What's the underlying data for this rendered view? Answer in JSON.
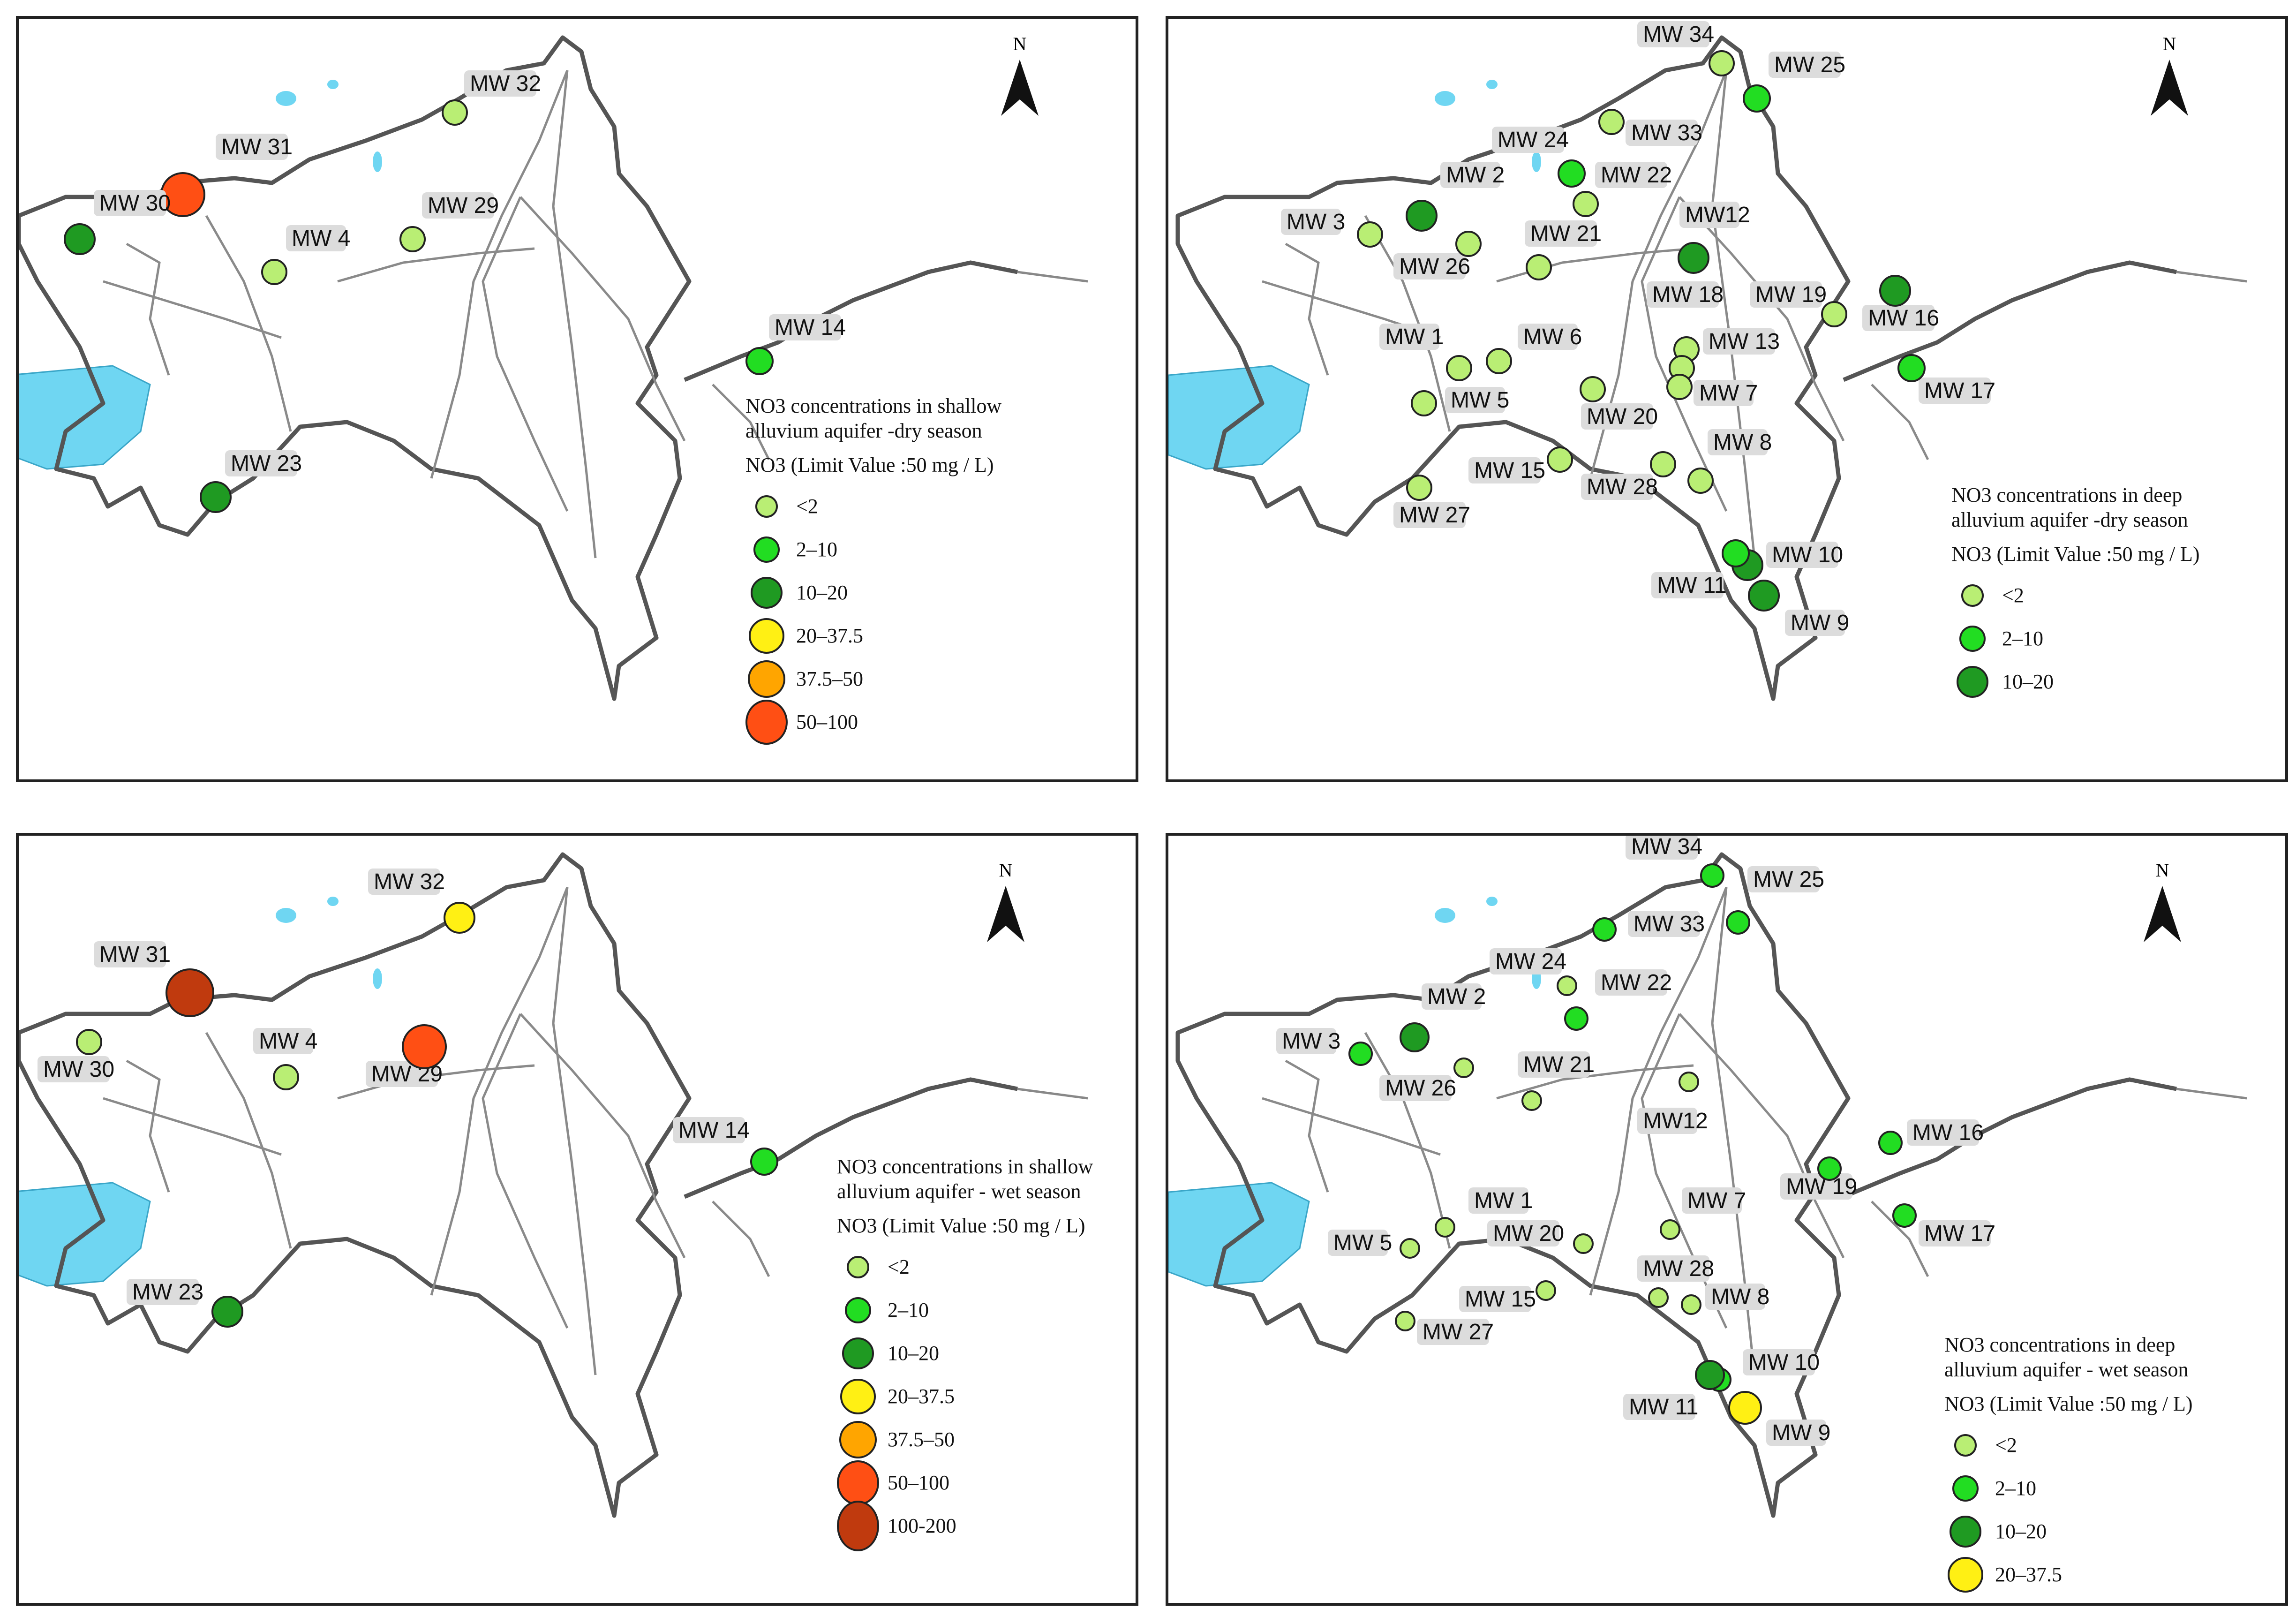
{
  "colors": {
    "lt2": "#b9ee74",
    "c2_10": "#22dd22",
    "c10_20": "#1f9a22",
    "c20_37": "#fff014",
    "c37_50": "#ffa500",
    "c50_100": "#ff4f14",
    "c100_200": "#c03a0e",
    "water": "#6fd6f2"
  },
  "north_label": "N",
  "panels": [
    {
      "title": "NO3 concentrations in shallow\nalluvium aquifer -dry season",
      "subtitle": "NO3 (Limit Value :50 mg / L)",
      "legend": [
        {
          "label": "<2",
          "cls": "lt2"
        },
        {
          "label": "2–10",
          "cls": "c2_10"
        },
        {
          "label": "10–20",
          "cls": "c10_20"
        },
        {
          "label": "20–37.5",
          "cls": "c20_37"
        },
        {
          "label": "37.5–50",
          "cls": "c37_50"
        },
        {
          "label": "50–100",
          "cls": "c50_100"
        }
      ],
      "wells": [
        {
          "name": "MW 32",
          "cls": "lt2"
        },
        {
          "name": "MW 31",
          "cls": "c50_100"
        },
        {
          "name": "MW 30",
          "cls": "c10_20"
        },
        {
          "name": "MW 29",
          "cls": "lt2"
        },
        {
          "name": "MW 4",
          "cls": "lt2"
        },
        {
          "name": "MW 14",
          "cls": "c2_10"
        },
        {
          "name": "MW 23",
          "cls": "c10_20"
        }
      ]
    },
    {
      "title": "NO3 concentrations in deep\nalluvium aquifer -dry season",
      "subtitle": "NO3 (Limit Value :50 mg / L)",
      "legend": [
        {
          "label": "<2",
          "cls": "lt2"
        },
        {
          "label": "2–10",
          "cls": "c2_10"
        },
        {
          "label": "10–20",
          "cls": "c10_20"
        }
      ],
      "wells": [
        {
          "name": "MW 34",
          "cls": "lt2"
        },
        {
          "name": "MW 25",
          "cls": "c2_10"
        },
        {
          "name": "MW 33",
          "cls": "lt2"
        },
        {
          "name": "MW 24",
          "cls": "c2_10"
        },
        {
          "name": "MW 22",
          "cls": "lt2"
        },
        {
          "name": "MW 2",
          "cls": "c10_20"
        },
        {
          "name": "MW 3",
          "cls": "lt2"
        },
        {
          "name": "MW 26",
          "cls": "lt2"
        },
        {
          "name": "MW 21",
          "cls": "lt2"
        },
        {
          "name": "MW12",
          "cls": "c10_20"
        },
        {
          "name": "MW 19",
          "cls": "lt2"
        },
        {
          "name": "MW 16",
          "cls": "c10_20"
        },
        {
          "name": "MW 17",
          "cls": "c2_10"
        },
        {
          "name": "MW 1",
          "cls": "lt2"
        },
        {
          "name": "MW 6",
          "cls": "lt2"
        },
        {
          "name": "MW 18",
          "cls": "lt2"
        },
        {
          "name": "MW 13",
          "cls": "lt2"
        },
        {
          "name": "MW 7",
          "cls": "lt2"
        },
        {
          "name": "MW 5",
          "cls": "lt2"
        },
        {
          "name": "MW 20",
          "cls": "lt2"
        },
        {
          "name": "MW 8",
          "cls": "lt2"
        },
        {
          "name": "MW 15",
          "cls": "lt2"
        },
        {
          "name": "MW 28",
          "cls": "lt2"
        },
        {
          "name": "MW 27",
          "cls": "lt2"
        },
        {
          "name": "MW 10",
          "cls": "c10_20"
        },
        {
          "name": "MW 11",
          "cls": "c2_10"
        },
        {
          "name": "MW 9",
          "cls": "c10_20"
        }
      ]
    },
    {
      "title": "NO3 concentrations in shallow\nalluvium aquifer - wet season",
      "subtitle": "NO3 (Limit Value :50 mg / L)",
      "legend": [
        {
          "label": "<2",
          "cls": "lt2"
        },
        {
          "label": "2–10",
          "cls": "c2_10"
        },
        {
          "label": "10–20",
          "cls": "c10_20"
        },
        {
          "label": "20–37.5",
          "cls": "c20_37"
        },
        {
          "label": "37.5–50",
          "cls": "c37_50"
        },
        {
          "label": "50–100",
          "cls": "c50_100"
        },
        {
          "label": "100-200",
          "cls": "c100_200"
        }
      ],
      "wells": [
        {
          "name": "MW 32",
          "cls": "c20_37"
        },
        {
          "name": "MW 31",
          "cls": "c100_200"
        },
        {
          "name": "MW 30",
          "cls": "lt2"
        },
        {
          "name": "MW 4",
          "cls": "lt2"
        },
        {
          "name": "MW 29",
          "cls": "c50_100"
        },
        {
          "name": "MW 14",
          "cls": "c2_10"
        },
        {
          "name": "MW 23",
          "cls": "c10_20"
        }
      ]
    },
    {
      "title": "NO3 concentrations in deep\nalluvium aquifer - wet season",
      "subtitle": "NO3 (Limit Value :50 mg / L)",
      "legend": [
        {
          "label": "<2",
          "cls": "lt2"
        },
        {
          "label": "2–10",
          "cls": "c2_10"
        },
        {
          "label": "10–20",
          "cls": "c10_20"
        },
        {
          "label": "20–37.5",
          "cls": "c20_37"
        }
      ],
      "wells": [
        {
          "name": "MW 34",
          "cls": "c2_10"
        },
        {
          "name": "MW 25",
          "cls": "c2_10"
        },
        {
          "name": "MW 33",
          "cls": "c2_10"
        },
        {
          "name": "MW 24",
          "cls": "lt2"
        },
        {
          "name": "MW 22",
          "cls": "c2_10"
        },
        {
          "name": "MW 2",
          "cls": "c10_20"
        },
        {
          "name": "MW 3",
          "cls": "c2_10"
        },
        {
          "name": "MW 26",
          "cls": "lt2"
        },
        {
          "name": "MW 21",
          "cls": "lt2"
        },
        {
          "name": "MW12",
          "cls": "lt2"
        },
        {
          "name": "MW 16",
          "cls": "c2_10"
        },
        {
          "name": "MW 19",
          "cls": "c2_10"
        },
        {
          "name": "MW 17",
          "cls": "c2_10"
        },
        {
          "name": "MW 1",
          "cls": "lt2"
        },
        {
          "name": "MW 7",
          "cls": "lt2"
        },
        {
          "name": "MW 5",
          "cls": "lt2"
        },
        {
          "name": "MW 20",
          "cls": "lt2"
        },
        {
          "name": "MW 28",
          "cls": "lt2"
        },
        {
          "name": "MW 8",
          "cls": "lt2"
        },
        {
          "name": "MW 15",
          "cls": "lt2"
        },
        {
          "name": "MW 27",
          "cls": "lt2"
        },
        {
          "name": "MW 10",
          "cls": "c2_10"
        },
        {
          "name": "MW 11",
          "cls": "c10_20"
        },
        {
          "name": "MW 9",
          "cls": "c20_37"
        }
      ]
    }
  ]
}
